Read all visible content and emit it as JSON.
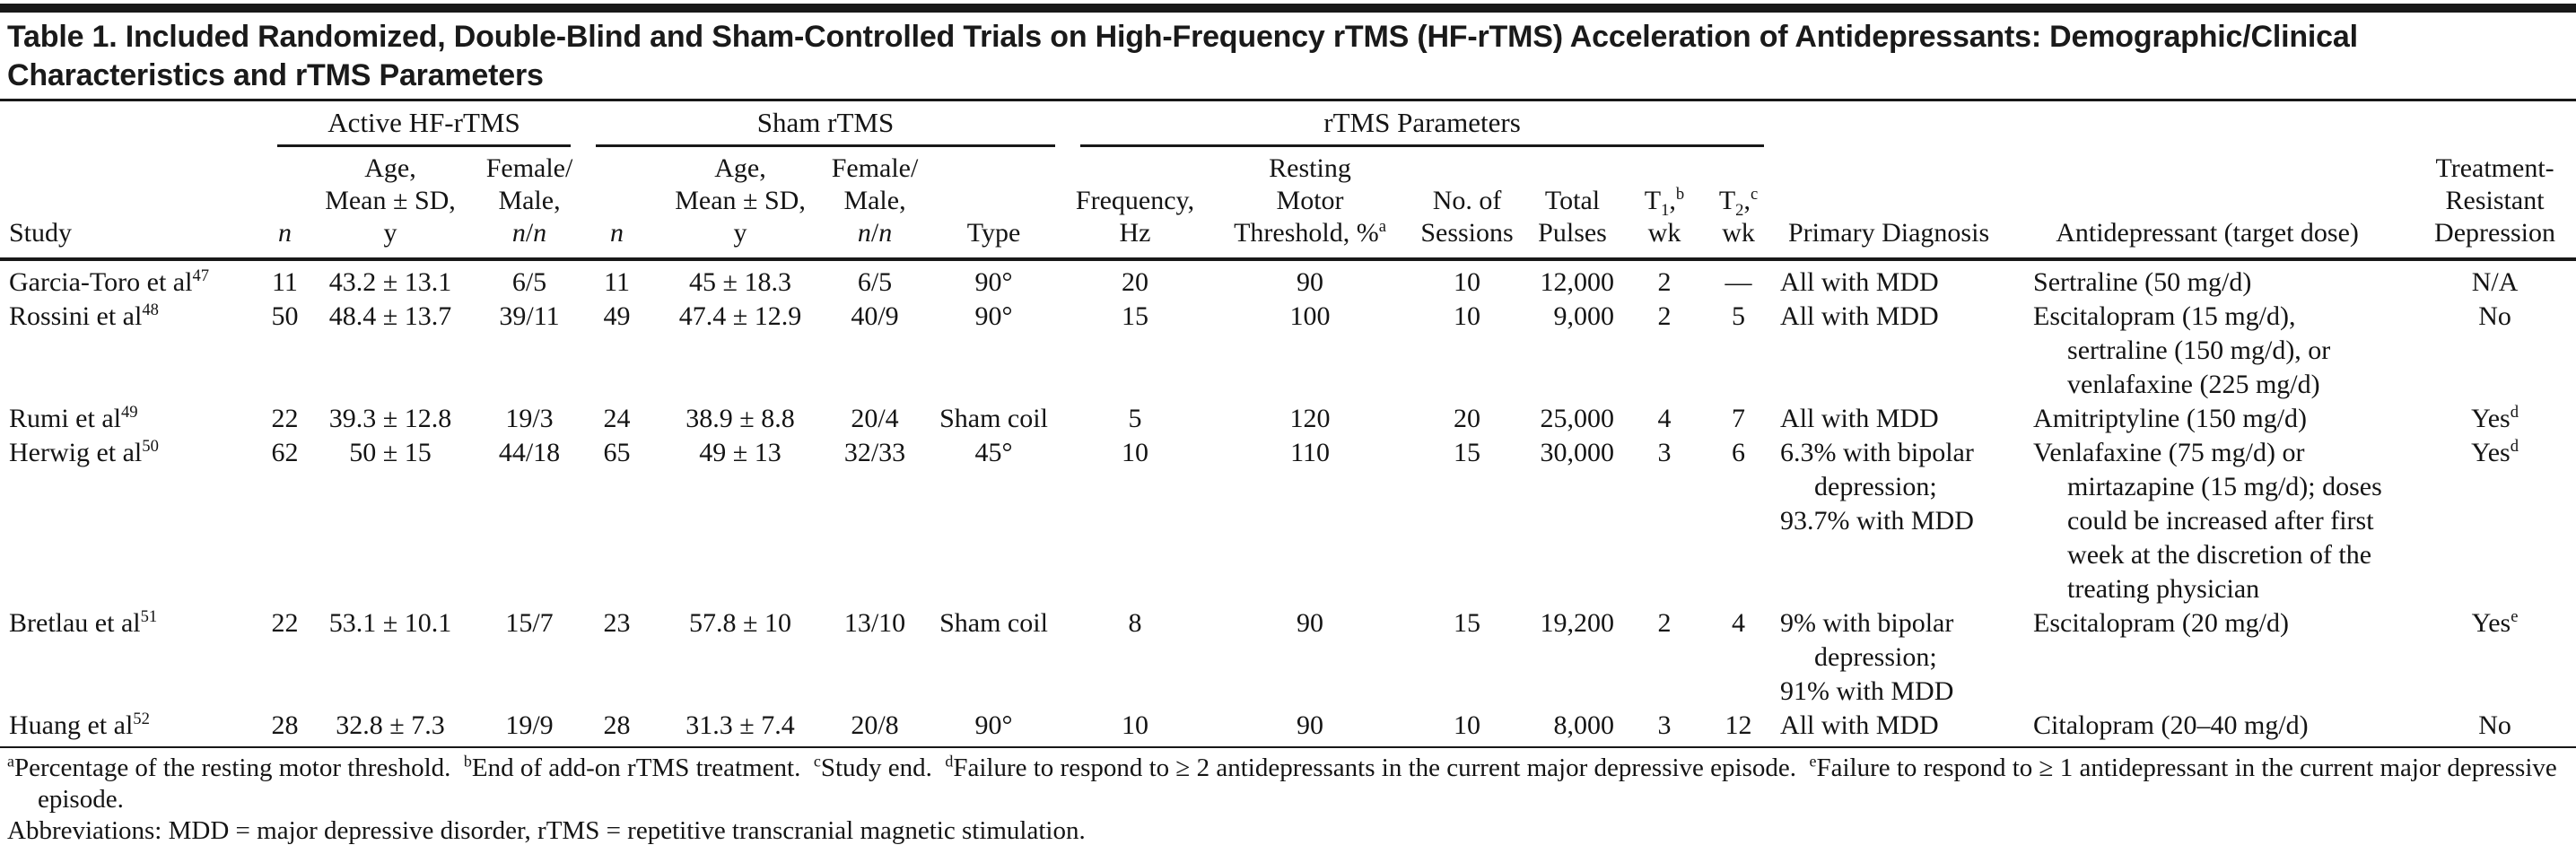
{
  "title": "Table 1. Included Randomized, Double-Blind and Sham-Controlled Trials on High-Frequency rTMS (HF-rTMS) Acceleration of Antidepressants: Demographic/Clinical Characteristics and rTMS Parameters",
  "groups": {
    "active": "Active HF-rTMS",
    "sham": "Sham rTMS",
    "params": "rTMS Parameters"
  },
  "headers": {
    "study": "Study",
    "n": "<i>n</i>",
    "age": "Age,<br>Mean ± SD,<br>y",
    "female_male": "Female/<br>Male,<br><i>n</i>/<i>n</i>",
    "type": "Type",
    "frequency": "Frequency,<br>Hz",
    "rmt": "Resting<br>Motor<br>Threshold, %<sup>a</sup>",
    "sessions": "No. of<br>Sessions",
    "pulses": "Total<br>Pulses",
    "t1": "T<sub>1</sub>,<sup>b</sup><br>wk",
    "t2": "T<sub>2</sub>,<sup>c</sup><br>wk",
    "diagnosis": "Primary Diagnosis",
    "antidepressant": "Antidepressant (target dose)",
    "trd": "Treatment-<br>Resistant<br>Depression"
  },
  "rows": [
    {
      "study": "Garcia-Toro et al<sup>47</sup>",
      "active_n": "11",
      "active_age": "43.2 ± 13.1",
      "active_fm": "6/5",
      "sham_n": "11",
      "sham_age": "45 ± 18.3",
      "sham_fm": "6/5",
      "type": "90°",
      "frequency": "20",
      "rmt": "90",
      "sessions": "10",
      "pulses": "12,000",
      "t1": "2",
      "t2": "—",
      "diagnosis": [
        "All with MDD"
      ],
      "antidepressant": [
        "Sertraline (50 mg/d)"
      ],
      "trd": "N/A"
    },
    {
      "study": "Rossini et al<sup>48</sup>",
      "active_n": "50",
      "active_age": "48.4 ± 13.7",
      "active_fm": "39/11",
      "sham_n": "49",
      "sham_age": "47.4 ± 12.9",
      "sham_fm": "40/9",
      "type": "90°",
      "frequency": "15",
      "rmt": "100",
      "sessions": "10",
      "pulses": "9,000",
      "t1": "2",
      "t2": "5",
      "diagnosis": [
        "All with MDD"
      ],
      "antidepressant": [
        "Escitalopram (15 mg/d),<br>sertraline (150 mg/d), or<br>venlafaxine (225 mg/d)"
      ],
      "trd": "No"
    },
    {
      "study": "Rumi et al<sup>49</sup>",
      "active_n": "22",
      "active_age": "39.3 ± 12.8",
      "active_fm": "19/3",
      "sham_n": "24",
      "sham_age": "38.9 ± 8.8",
      "sham_fm": "20/4",
      "type": "Sham coil",
      "frequency": "5",
      "rmt": "120",
      "sessions": "20",
      "pulses": "25,000",
      "t1": "4",
      "t2": "7",
      "diagnosis": [
        "All with MDD"
      ],
      "antidepressant": [
        "Amitriptyline (150 mg/d)"
      ],
      "trd": "Yes<sup>d</sup>"
    },
    {
      "study": "Herwig et al<sup>50</sup>",
      "active_n": "62",
      "active_age": "50 ± 15",
      "active_fm": "44/18",
      "sham_n": "65",
      "sham_age": "49 ± 13",
      "sham_fm": "32/33",
      "type": "45°",
      "frequency": "10",
      "rmt": "110",
      "sessions": "15",
      "pulses": "30,000",
      "t1": "3",
      "t2": "6",
      "diagnosis": [
        "6.3% with bipolar<br>depression;",
        "93.7% with MDD"
      ],
      "antidepressant": [
        "Venlafaxine (75 mg/d) or<br>mirtazapine (15 mg/d); doses<br>could be increased after first<br>week at the discretion of the<br>treating physician"
      ],
      "trd": "Yes<sup>d</sup>"
    },
    {
      "study": "Bretlau et al<sup>51</sup>",
      "active_n": "22",
      "active_age": "53.1 ± 10.1",
      "active_fm": "15/7",
      "sham_n": "23",
      "sham_age": "57.8 ± 10",
      "sham_fm": "13/10",
      "type": "Sham coil",
      "frequency": "8",
      "rmt": "90",
      "sessions": "15",
      "pulses": "19,200",
      "t1": "2",
      "t2": "4",
      "diagnosis": [
        "9% with bipolar<br>depression;",
        "91% with MDD"
      ],
      "antidepressant": [
        "Escitalopram (20 mg/d)"
      ],
      "trd": "Yes<sup>e</sup>"
    },
    {
      "study": "Huang et al<sup>52</sup>",
      "active_n": "28",
      "active_age": "32.8 ± 7.3",
      "active_fm": "19/9",
      "sham_n": "28",
      "sham_age": "31.3 ± 7.4",
      "sham_fm": "20/8",
      "type": "90°",
      "frequency": "10",
      "rmt": "90",
      "sessions": "10",
      "pulses": "8,000",
      "t1": "3",
      "t2": "12",
      "diagnosis": [
        "All with MDD"
      ],
      "antidepressant": [
        "Citalopram (20–40 mg/d)"
      ],
      "trd": "No"
    }
  ],
  "footnotes": {
    "notes": "<sup>a</sup>Percentage of the resting motor threshold.&nbsp; <sup>b</sup>End of add-on rTMS treatment.&nbsp; <sup>c</sup>Study end.&nbsp; <sup>d</sup>Failure to respond to ≥ 2 antidepressants in the current major depressive episode.&nbsp; <sup>e</sup>Failure to respond to ≥ 1 antidepressant in the current major depressive episode.",
    "abbreviations": "Abbreviations: MDD = major depressive disorder, rTMS = repetitive transcranial magnetic stimulation."
  }
}
